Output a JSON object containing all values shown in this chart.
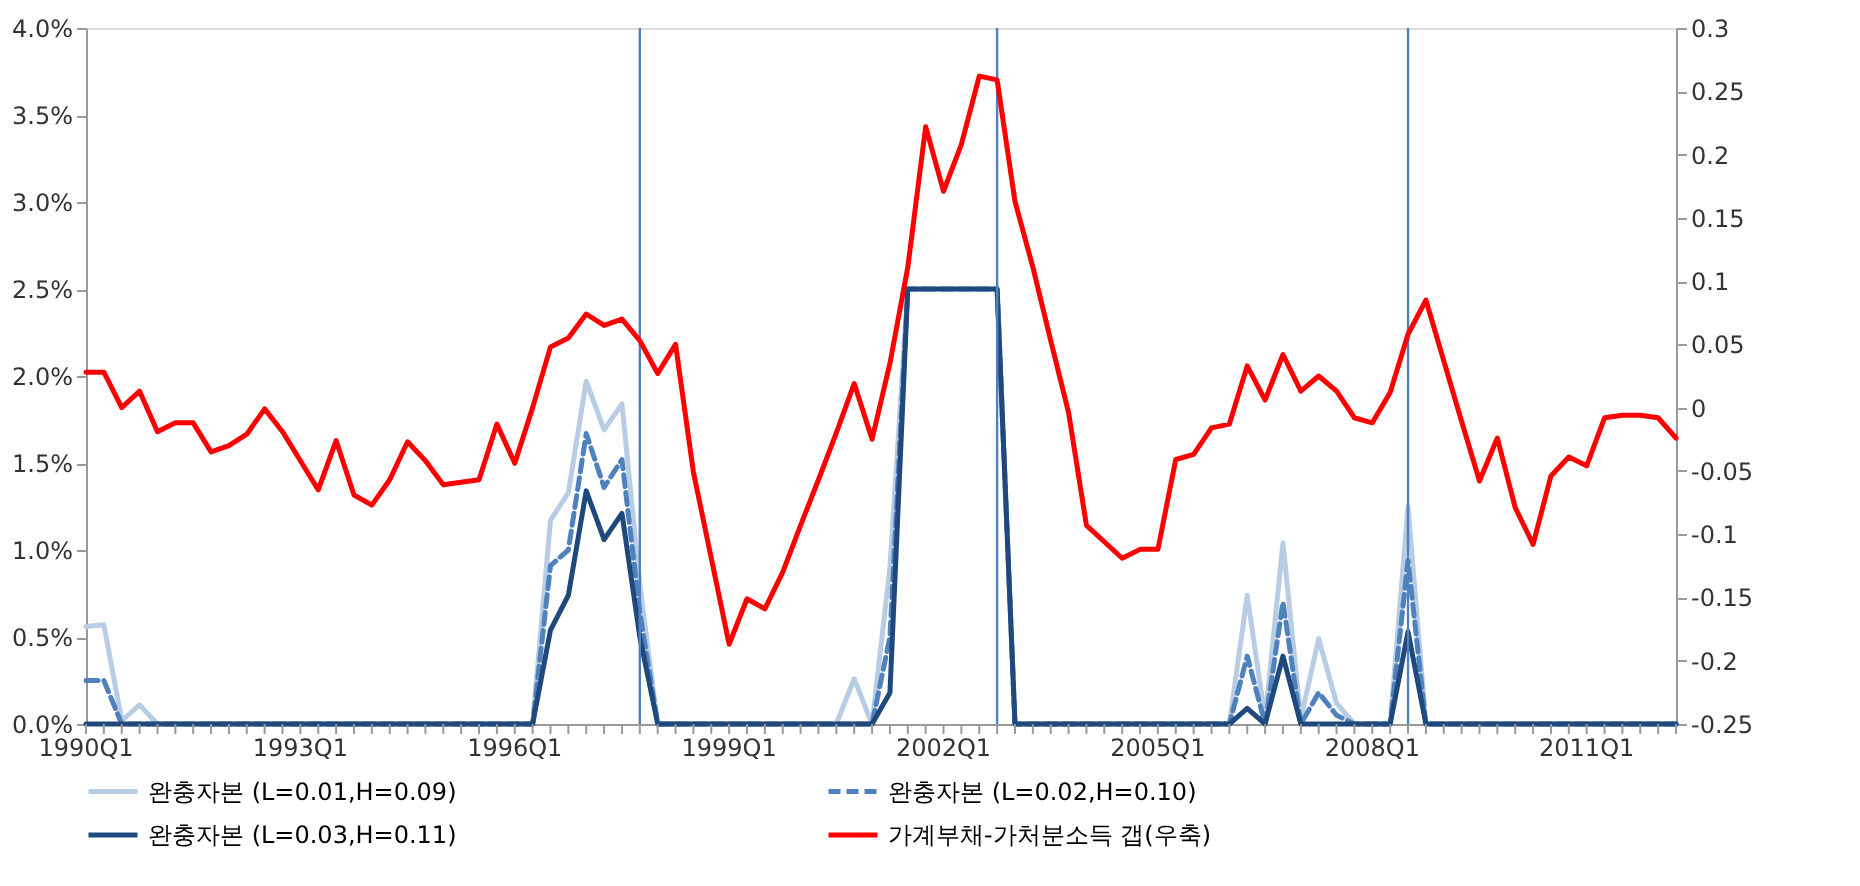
{
  "chart_data": {
    "type": "line",
    "x": [
      "1990-01",
      "1990-04",
      "1990-07",
      "1990-10",
      "1991-01",
      "1991-04",
      "1991-07",
      "1991-10",
      "1992-01",
      "1992-04",
      "1992-07",
      "1992-10",
      "1993-01",
      "1993-04",
      "1993-07",
      "1993-10",
      "1994-01",
      "1994-04",
      "1994-07",
      "1994-10",
      "1995-01",
      "1995-04",
      "1995-07",
      "1995-10",
      "1996-01",
      "1996-04",
      "1996-07",
      "1996-10",
      "1997-01",
      "1997-04",
      "1997-07",
      "1997-10",
      "1998-01",
      "1998-04",
      "1998-07",
      "1998-10",
      "1999-01",
      "1999-04",
      "1999-07",
      "1999-10",
      "2000-01",
      "2000-04",
      "2000-07",
      "2000-10",
      "2001-01",
      "2001-04",
      "2001-07",
      "2001-10",
      "2002-01",
      "2002-04",
      "2002-07",
      "2002-10",
      "2003-01",
      "2003-04",
      "2003-07",
      "2003-10",
      "2004-01",
      "2004-04",
      "2004-07",
      "2004-10",
      "2005-01",
      "2005-04",
      "2005-07",
      "2005-10",
      "2006-01",
      "2006-04",
      "2006-07",
      "2006-10",
      "2007-01",
      "2007-04",
      "2007-07",
      "2007-10",
      "2008-01",
      "2008-04",
      "2008-07",
      "2008-10",
      "2009-01",
      "2009-04",
      "2009-07",
      "2009-10",
      "2010-01",
      "2010-04",
      "2010-07",
      "2010-10",
      "2011-01",
      "2011-04",
      "2011-07",
      "2011-10",
      "2012-01",
      "2012-04"
    ],
    "xlim": [
      "1990-01",
      "2012-04"
    ],
    "xticks": [
      {
        "value": "1990-01",
        "label": "1990Q1"
      },
      {
        "value": "1990-04",
        "label": null
      },
      {
        "value": "1990-07",
        "label": null
      },
      {
        "value": "1990-10",
        "label": null
      },
      {
        "value": "1991-01",
        "label": null
      },
      {
        "value": "1991-04",
        "label": null
      },
      {
        "value": "1991-07",
        "label": null
      },
      {
        "value": "1991-10",
        "label": null
      },
      {
        "value": "1992-01",
        "label": null
      },
      {
        "value": "1992-04",
        "label": null
      },
      {
        "value": "1992-07",
        "label": null
      },
      {
        "value": "1992-10",
        "label": null
      },
      {
        "value": "1993-01",
        "label": "1993Q1"
      },
      {
        "value": "1993-04",
        "label": null
      },
      {
        "value": "1993-07",
        "label": null
      },
      {
        "value": "1993-10",
        "label": null
      },
      {
        "value": "1994-01",
        "label": null
      },
      {
        "value": "1994-04",
        "label": null
      },
      {
        "value": "1994-07",
        "label": null
      },
      {
        "value": "1994-10",
        "label": null
      },
      {
        "value": "1995-01",
        "label": null
      },
      {
        "value": "1995-04",
        "label": null
      },
      {
        "value": "1995-07",
        "label": null
      },
      {
        "value": "1995-10",
        "label": null
      },
      {
        "value": "1996-01",
        "label": "1996Q1"
      },
      {
        "value": "1996-04",
        "label": null
      },
      {
        "value": "1996-07",
        "label": null
      },
      {
        "value": "1996-10",
        "label": null
      },
      {
        "value": "1997-01",
        "label": null
      },
      {
        "value": "1997-04",
        "label": null
      },
      {
        "value": "1997-07",
        "label": null
      },
      {
        "value": "1997-10",
        "label": null
      },
      {
        "value": "1998-01",
        "label": null
      },
      {
        "value": "1998-04",
        "label": null
      },
      {
        "value": "1998-07",
        "label": null
      },
      {
        "value": "1998-10",
        "label": null
      },
      {
        "value": "1999-01",
        "label": "1999Q1"
      },
      {
        "value": "1999-04",
        "label": null
      },
      {
        "value": "1999-07",
        "label": null
      },
      {
        "value": "1999-10",
        "label": null
      },
      {
        "value": "2000-01",
        "label": null
      },
      {
        "value": "2000-04",
        "label": null
      },
      {
        "value": "2000-07",
        "label": null
      },
      {
        "value": "2000-10",
        "label": null
      },
      {
        "value": "2001-01",
        "label": null
      },
      {
        "value": "2001-04",
        "label": null
      },
      {
        "value": "2001-07",
        "label": null
      },
      {
        "value": "2001-10",
        "label": null
      },
      {
        "value": "2002-01",
        "label": "2002Q1"
      },
      {
        "value": "2002-04",
        "label": null
      },
      {
        "value": "2002-07",
        "label": null
      },
      {
        "value": "2002-10",
        "label": null
      },
      {
        "value": "2003-01",
        "label": null
      },
      {
        "value": "2003-04",
        "label": null
      },
      {
        "value": "2003-07",
        "label": null
      },
      {
        "value": "2003-10",
        "label": null
      },
      {
        "value": "2004-01",
        "label": null
      },
      {
        "value": "2004-04",
        "label": null
      },
      {
        "value": "2004-07",
        "label": null
      },
      {
        "value": "2004-10",
        "label": null
      },
      {
        "value": "2005-01",
        "label": "2005Q1"
      },
      {
        "value": "2005-04",
        "label": null
      },
      {
        "value": "2005-07",
        "label": null
      },
      {
        "value": "2005-10",
        "label": null
      },
      {
        "value": "2006-01",
        "label": null
      },
      {
        "value": "2006-04",
        "label": null
      },
      {
        "value": "2006-07",
        "label": null
      },
      {
        "value": "2006-10",
        "label": null
      },
      {
        "value": "2007-01",
        "label": null
      },
      {
        "value": "2007-04",
        "label": null
      },
      {
        "value": "2007-07",
        "label": null
      },
      {
        "value": "2007-10",
        "label": null
      },
      {
        "value": "2008-01",
        "label": "2008Q1"
      },
      {
        "value": "2008-04",
        "label": null
      },
      {
        "value": "2008-07",
        "label": null
      },
      {
        "value": "2008-10",
        "label": null
      },
      {
        "value": "2009-01",
        "label": null
      },
      {
        "value": "2009-04",
        "label": null
      },
      {
        "value": "2009-07",
        "label": null
      },
      {
        "value": "2009-10",
        "label": null
      },
      {
        "value": "2010-01",
        "label": null
      },
      {
        "value": "2010-04",
        "label": null
      },
      {
        "value": "2010-07",
        "label": null
      },
      {
        "value": "2010-10",
        "label": null
      },
      {
        "value": "2011-01",
        "label": "2011Q1"
      },
      {
        "value": "2011-04",
        "label": null
      },
      {
        "value": "2011-07",
        "label": null
      },
      {
        "value": "2011-10",
        "label": null
      },
      {
        "value": "2012-01",
        "label": null
      },
      {
        "value": "2012-04",
        "label": null
      }
    ],
    "ylim": [
      0,
      4
    ],
    "yticks": [
      {
        "value": 0,
        "label": "0.0%"
      },
      {
        "value": 0.5,
        "label": "0.5%"
      },
      {
        "value": 1,
        "label": "1.0%"
      },
      {
        "value": 1.5,
        "label": "1.5%"
      },
      {
        "value": 2,
        "label": "2.0%"
      },
      {
        "value": 2.5,
        "label": "2.5%"
      },
      {
        "value": 3,
        "label": "3.0%"
      },
      {
        "value": 3.5,
        "label": "3.5%"
      },
      {
        "value": 4,
        "label": "4.0%"
      }
    ],
    "y2lim": [
      -0.25,
      0.3
    ],
    "y2ticks": [
      -0.25,
      -0.2,
      -0.15,
      -0.1,
      -0.05,
      0,
      0.05,
      0.1,
      0.15,
      0.2,
      0.25,
      0.3
    ],
    "legend": "bottom",
    "ref_lines": [
      {
        "axis": "x",
        "value": "1997-10",
        "color": "#4f81bd"
      },
      {
        "axis": "x",
        "value": "2002-10",
        "color": "#4f81bd"
      },
      {
        "axis": "x",
        "value": "2008-07",
        "color": "#4f81bd"
      }
    ],
    "series": [
      {
        "name": "완충자본 (L=0.01,H=0.09)",
        "color": "#b8cce4",
        "line_style": "solid",
        "values": [
          0.56,
          0.57,
          0.02,
          0.11,
          0,
          0,
          0,
          0,
          0,
          0,
          0,
          0,
          0,
          0,
          0,
          0,
          0,
          0,
          0,
          0,
          0,
          0,
          0,
          0,
          0,
          0,
          1.17,
          1.33,
          1.97,
          1.69,
          1.84,
          0.8,
          0,
          0,
          0,
          0,
          0,
          0,
          0,
          0,
          0,
          0,
          0,
          0.26,
          0,
          0.9,
          2.5,
          null,
          null,
          null,
          null,
          2.5,
          0,
          0,
          0,
          0,
          0,
          0,
          0,
          0,
          0,
          0,
          0,
          0,
          0,
          0.74,
          0.03,
          1.04,
          0.03,
          0.49,
          0.12,
          0,
          0,
          0,
          1.25,
          0,
          0,
          0,
          0,
          0,
          0,
          0,
          0,
          0,
          0,
          0,
          0,
          0,
          0,
          0
        ]
      },
      {
        "name": "완충자본 (L=0.02,H=0.10)",
        "color": "#4f81bd",
        "line_style": "dashed",
        "values": [
          0.25,
          0.25,
          0,
          0,
          0,
          0,
          0,
          0,
          0,
          0,
          0,
          0,
          0,
          0,
          0,
          0,
          0,
          0,
          0,
          0,
          0,
          0,
          0,
          0,
          0,
          0,
          0.91,
          1.0,
          1.67,
          1.36,
          1.52,
          0.64,
          0,
          0,
          0,
          0,
          0,
          0,
          0,
          0,
          0,
          0,
          0,
          0,
          0,
          0.5,
          2.5,
          2.5,
          2.5,
          2.5,
          2.5,
          2.5,
          0,
          0,
          0,
          0,
          0,
          0,
          0,
          0,
          0,
          0,
          0,
          0,
          0,
          0.39,
          0,
          0.7,
          0,
          0.18,
          0.05,
          0,
          0,
          0,
          0.94,
          0,
          0,
          0,
          0,
          0,
          0,
          0,
          0,
          0,
          0,
          0,
          0,
          0,
          0,
          0
        ]
      },
      {
        "name": "완충자본 (L=0.03,H=0.11)",
        "color": "#1f497d",
        "line_style": "solid",
        "values": [
          0,
          0,
          0,
          0,
          0,
          0,
          0,
          0,
          0,
          0,
          0,
          0,
          0,
          0,
          0,
          0,
          0,
          0,
          0,
          0,
          0,
          0,
          0,
          0,
          0,
          0,
          0.54,
          0.74,
          1.34,
          1.06,
          1.21,
          0.5,
          0,
          0,
          0,
          0,
          0,
          0,
          0,
          0,
          0,
          0,
          0,
          0,
          0,
          0.18,
          2.5,
          2.5,
          2.5,
          2.5,
          2.5,
          2.5,
          0,
          0,
          0,
          0,
          0,
          0,
          0,
          0,
          0,
          0,
          0,
          0,
          0,
          0.09,
          0,
          0.39,
          0,
          0,
          0,
          0,
          0,
          0,
          0.53,
          0,
          0,
          0,
          0,
          0,
          0,
          0,
          0,
          0,
          0,
          0,
          0,
          0,
          0,
          0
        ]
      },
      {
        "name": "가계부채-가처분소득 갭(우축)",
        "color": "#ff0000",
        "line_style": "solid",
        "axis": "y2",
        "values": [
          0.028,
          0.028,
          0.0,
          0.013,
          -0.019,
          -0.012,
          -0.012,
          -0.035,
          -0.03,
          -0.021,
          -0.001,
          -0.019,
          -0.042,
          -0.065,
          -0.026,
          -0.069,
          -0.077,
          -0.057,
          -0.027,
          -0.042,
          -0.061,
          -0.059,
          -0.057,
          -0.013,
          -0.044,
          0.0,
          0.048,
          0.055,
          0.074,
          0.065,
          0.07,
          0.053,
          0.027,
          0.05,
          -0.051,
          -0.119,
          -0.187,
          -0.151,
          -0.159,
          -0.13,
          -0.093,
          -0.057,
          -0.02,
          0.019,
          -0.025,
          0.035,
          0.111,
          0.222,
          0.171,
          0.208,
          0.262,
          0.259,
          0.163,
          0.111,
          0.053,
          -0.004,
          -0.093,
          -0.106,
          -0.119,
          -0.112,
          -0.112,
          -0.041,
          -0.037,
          -0.016,
          -0.013,
          0.033,
          0.006,
          0.042,
          0.013,
          0.025,
          0.013,
          -0.008,
          -0.012,
          0.012,
          0.058,
          0.085,
          0.037,
          -0.011,
          -0.058,
          -0.024,
          -0.079,
          -0.108,
          -0.054,
          -0.039,
          -0.046,
          -0.008,
          -0.006,
          -0.006,
          -0.008,
          -0.024
        ]
      }
    ]
  }
}
